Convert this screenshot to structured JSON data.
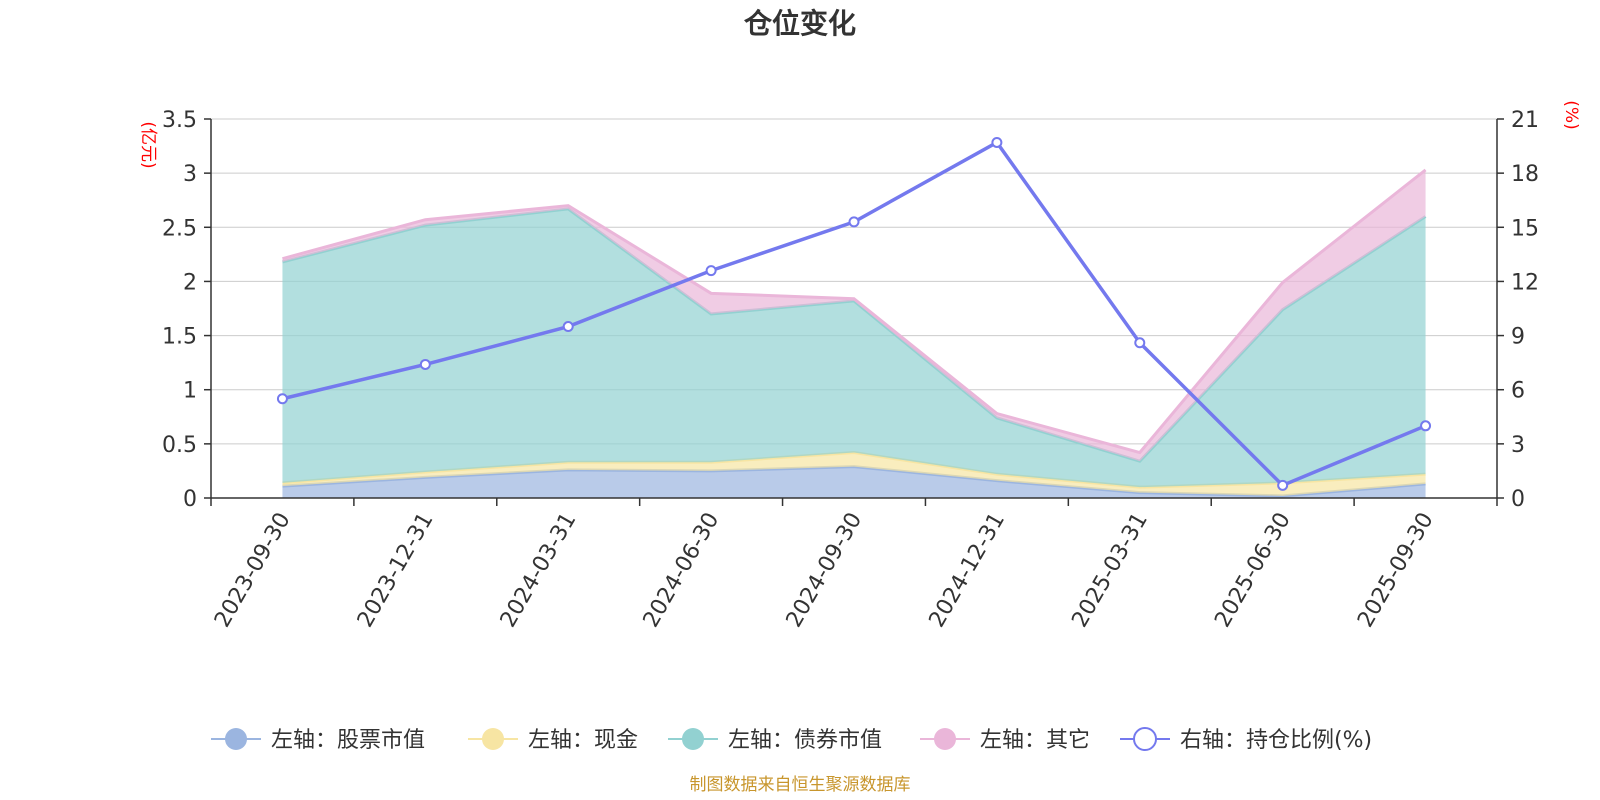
{
  "chart_data": {
    "type": "area",
    "title": "仓位变化",
    "categories": [
      "2023-09-30",
      "2023-12-31",
      "2024-03-31",
      "2024-06-30",
      "2024-09-30",
      "2024-12-31",
      "2025-03-31",
      "2025-06-30",
      "2025-09-30"
    ],
    "left_axis": {
      "unit": "(亿元)",
      "ylim": [
        0,
        3.5
      ],
      "ticks": [
        "0",
        "0.5",
        "1",
        "1.5",
        "2",
        "2.5",
        "3",
        "3.5"
      ]
    },
    "right_axis": {
      "unit": "(%)",
      "ylim": [
        0,
        21
      ],
      "ticks": [
        "0",
        "3",
        "6",
        "9",
        "12",
        "15",
        "18",
        "21"
      ]
    },
    "stacked_series": [
      {
        "name": "左轴：股票市值",
        "color": "#9bb5e0",
        "values": [
          0.11,
          0.19,
          0.26,
          0.25,
          0.29,
          0.16,
          0.05,
          0.02,
          0.13
        ]
      },
      {
        "name": "左轴：现金",
        "color": "#f7e5a3",
        "values": [
          0.03,
          0.05,
          0.07,
          0.08,
          0.13,
          0.06,
          0.05,
          0.12,
          0.09
        ]
      },
      {
        "name": "左轴：债券市值",
        "color": "#92d1d1",
        "values": [
          2.04,
          2.28,
          2.34,
          1.37,
          1.4,
          0.52,
          0.24,
          1.6,
          2.38
        ]
      },
      {
        "name": "左轴：其它",
        "color": "#eab6d9",
        "values": [
          0.03,
          0.05,
          0.03,
          0.19,
          0.02,
          0.04,
          0.08,
          0.25,
          0.43
        ]
      }
    ],
    "line_series": {
      "name": "右轴：持仓比例(%)",
      "color": "#7479ee",
      "axis": "right",
      "values": [
        5.5,
        7.4,
        9.5,
        12.6,
        15.3,
        19.7,
        8.6,
        0.7,
        4.0
      ]
    },
    "legend_position": "bottom",
    "grid": true
  },
  "footer": {
    "source": "制图数据来自恒生聚源数据库"
  }
}
